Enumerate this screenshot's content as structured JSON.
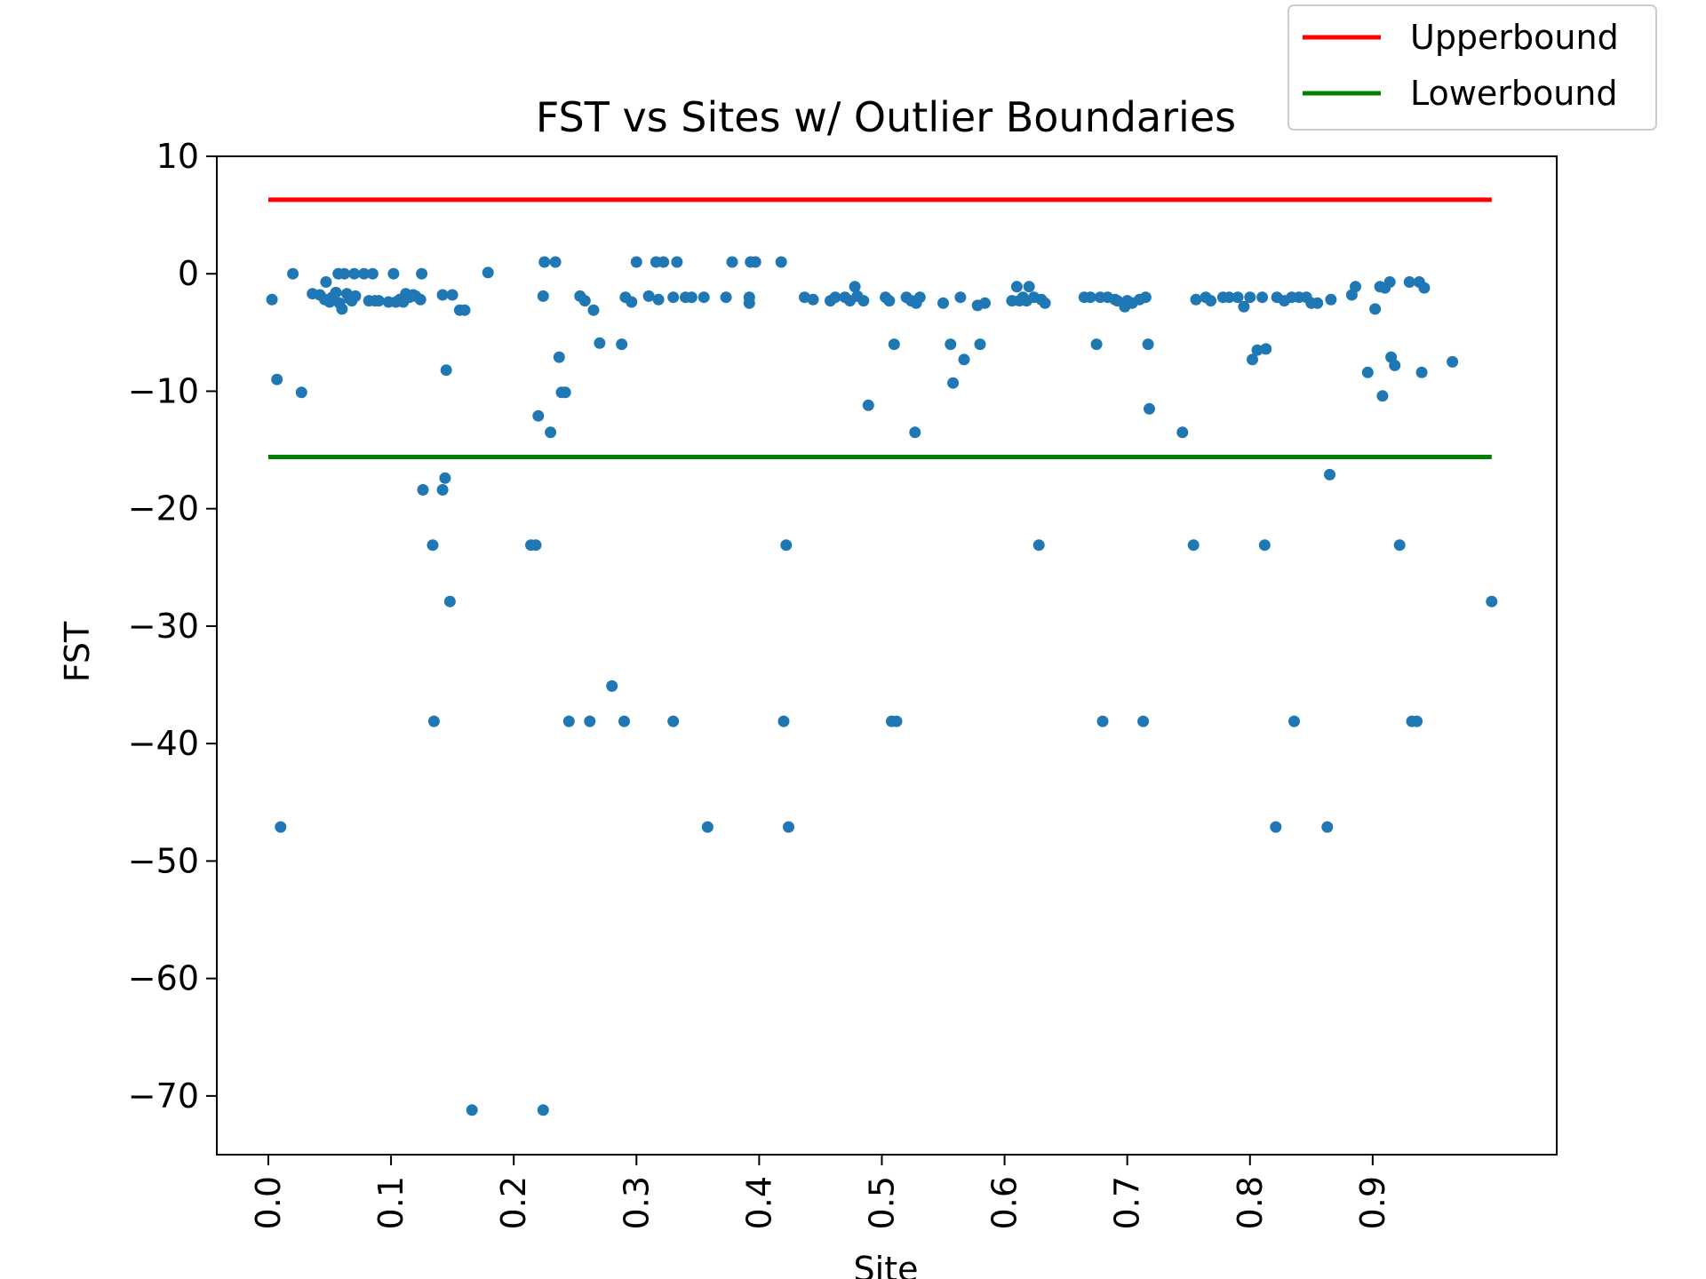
{
  "chart_data": {
    "type": "scatter",
    "title": "FST vs Sites w/ Outlier Boundaries",
    "xlabel": "Site",
    "ylabel": "FST",
    "xlim": [
      -0.042,
      1.05
    ],
    "ylim": [
      -75,
      10
    ],
    "xticks": [
      0.0,
      0.1,
      0.2,
      0.3,
      0.4,
      0.5,
      0.6,
      0.7,
      0.8,
      0.9
    ],
    "xtick_labels": [
      "0.0",
      "0.1",
      "0.2",
      "0.3",
      "0.4",
      "0.5",
      "0.6",
      "0.7",
      "0.8",
      "0.9"
    ],
    "yticks": [
      10,
      0,
      -10,
      -20,
      -30,
      -40,
      -50,
      -60,
      -70
    ],
    "ytick_labels": [
      "10",
      "0",
      "−10",
      "−20",
      "−30",
      "−40",
      "−50",
      "−60",
      "−70"
    ],
    "grid": false,
    "legend_position": "top-right, above plot",
    "series": [
      {
        "kind": "points",
        "color": "#1f77b4",
        "points": [
          [
            0.003,
            -2.2
          ],
          [
            0.007,
            -9.0
          ],
          [
            0.01,
            -47.1
          ],
          [
            0.02,
            0.0
          ],
          [
            0.027,
            -10.1
          ],
          [
            0.036,
            -1.7
          ],
          [
            0.042,
            -1.8
          ],
          [
            0.046,
            -2.2
          ],
          [
            0.047,
            -0.7
          ],
          [
            0.05,
            -2.4
          ],
          [
            0.052,
            -2.0
          ],
          [
            0.055,
            -1.6
          ],
          [
            0.057,
            0.0
          ],
          [
            0.058,
            -2.5
          ],
          [
            0.06,
            -3.0
          ],
          [
            0.062,
            0.0
          ],
          [
            0.064,
            -1.7
          ],
          [
            0.066,
            -2.1
          ],
          [
            0.068,
            -2.3
          ],
          [
            0.07,
            0.0
          ],
          [
            0.071,
            -1.9
          ],
          [
            0.078,
            0.0
          ],
          [
            0.082,
            -2.3
          ],
          [
            0.085,
            0.0
          ],
          [
            0.087,
            -2.3
          ],
          [
            0.09,
            -2.3
          ],
          [
            0.098,
            -2.4
          ],
          [
            0.102,
            0.0
          ],
          [
            0.104,
            -2.4
          ],
          [
            0.107,
            -2.2
          ],
          [
            0.11,
            -2.4
          ],
          [
            0.112,
            -1.7
          ],
          [
            0.115,
            -2.0
          ],
          [
            0.118,
            -1.8
          ],
          [
            0.12,
            -1.9
          ],
          [
            0.124,
            -2.2
          ],
          [
            0.125,
            0.0
          ],
          [
            0.126,
            -18.4
          ],
          [
            0.134,
            -23.1
          ],
          [
            0.135,
            -38.1
          ],
          [
            0.142,
            -1.8
          ],
          [
            0.142,
            -18.4
          ],
          [
            0.144,
            -17.4
          ],
          [
            0.145,
            -8.2
          ],
          [
            0.148,
            -27.9
          ],
          [
            0.15,
            -1.8
          ],
          [
            0.156,
            -3.1
          ],
          [
            0.16,
            -3.1
          ],
          [
            0.166,
            -71.2
          ],
          [
            0.179,
            0.1
          ],
          [
            0.214,
            -23.1
          ],
          [
            0.218,
            -23.1
          ],
          [
            0.22,
            -12.1
          ],
          [
            0.224,
            -1.9
          ],
          [
            0.224,
            -71.2
          ],
          [
            0.225,
            1.0
          ],
          [
            0.23,
            -13.5
          ],
          [
            0.234,
            1.0
          ],
          [
            0.237,
            -7.1
          ],
          [
            0.239,
            -10.1
          ],
          [
            0.242,
            -10.1
          ],
          [
            0.245,
            -38.1
          ],
          [
            0.254,
            -1.9
          ],
          [
            0.258,
            -2.3
          ],
          [
            0.262,
            -38.1
          ],
          [
            0.265,
            -3.1
          ],
          [
            0.27,
            -5.9
          ],
          [
            0.28,
            -35.1
          ],
          [
            0.288,
            -6.0
          ],
          [
            0.29,
            -38.1
          ],
          [
            0.291,
            -2.0
          ],
          [
            0.296,
            -2.4
          ],
          [
            0.3,
            1.0
          ],
          [
            0.31,
            -1.9
          ],
          [
            0.316,
            1.0
          ],
          [
            0.318,
            -2.2
          ],
          [
            0.322,
            1.0
          ],
          [
            0.33,
            -38.1
          ],
          [
            0.33,
            -2.0
          ],
          [
            0.333,
            1.0
          ],
          [
            0.34,
            -2.0
          ],
          [
            0.345,
            -2.0
          ],
          [
            0.355,
            -2.0
          ],
          [
            0.358,
            -47.1
          ],
          [
            0.373,
            -2.0
          ],
          [
            0.378,
            1.0
          ],
          [
            0.392,
            -2.0
          ],
          [
            0.392,
            -2.5
          ],
          [
            0.393,
            1.0
          ],
          [
            0.397,
            1.0
          ],
          [
            0.418,
            1.0
          ],
          [
            0.42,
            -38.1
          ],
          [
            0.422,
            -23.1
          ],
          [
            0.424,
            -47.1
          ],
          [
            0.437,
            -2.0
          ],
          [
            0.444,
            -2.2
          ],
          [
            0.458,
            -2.3
          ],
          [
            0.462,
            -2.0
          ],
          [
            0.47,
            -2.0
          ],
          [
            0.474,
            -2.3
          ],
          [
            0.478,
            -1.1
          ],
          [
            0.48,
            -1.9
          ],
          [
            0.485,
            -2.3
          ],
          [
            0.489,
            -11.2
          ],
          [
            0.503,
            -2.0
          ],
          [
            0.506,
            -2.3
          ],
          [
            0.508,
            -38.1
          ],
          [
            0.51,
            -6.0
          ],
          [
            0.512,
            -38.1
          ],
          [
            0.52,
            -2.0
          ],
          [
            0.524,
            -2.3
          ],
          [
            0.527,
            -13.5
          ],
          [
            0.528,
            -2.5
          ],
          [
            0.531,
            -2.0
          ],
          [
            0.55,
            -2.5
          ],
          [
            0.556,
            -6.0
          ],
          [
            0.558,
            -9.3
          ],
          [
            0.564,
            -2.0
          ],
          [
            0.567,
            -7.3
          ],
          [
            0.578,
            -2.7
          ],
          [
            0.58,
            -6.0
          ],
          [
            0.584,
            -2.5
          ],
          [
            0.606,
            -2.3
          ],
          [
            0.61,
            -1.1
          ],
          [
            0.612,
            -2.3
          ],
          [
            0.615,
            -2.0
          ],
          [
            0.618,
            -2.3
          ],
          [
            0.62,
            -1.1
          ],
          [
            0.624,
            -2.0
          ],
          [
            0.628,
            -23.1
          ],
          [
            0.63,
            -2.2
          ],
          [
            0.633,
            -2.5
          ],
          [
            0.665,
            -2.0
          ],
          [
            0.67,
            -2.0
          ],
          [
            0.675,
            -6.0
          ],
          [
            0.678,
            -2.0
          ],
          [
            0.68,
            -38.1
          ],
          [
            0.684,
            -2.0
          ],
          [
            0.69,
            -2.2
          ],
          [
            0.692,
            -2.3
          ],
          [
            0.698,
            -2.8
          ],
          [
            0.7,
            -2.3
          ],
          [
            0.704,
            -2.5
          ],
          [
            0.71,
            -2.2
          ],
          [
            0.713,
            -38.1
          ],
          [
            0.715,
            -2.0
          ],
          [
            0.717,
            -6.0
          ],
          [
            0.718,
            -11.5
          ],
          [
            0.745,
            -13.5
          ],
          [
            0.754,
            -23.1
          ],
          [
            0.756,
            -2.2
          ],
          [
            0.764,
            -2.0
          ],
          [
            0.768,
            -2.3
          ],
          [
            0.778,
            -2.0
          ],
          [
            0.783,
            -2.0
          ],
          [
            0.79,
            -2.0
          ],
          [
            0.795,
            -2.8
          ],
          [
            0.8,
            -2.0
          ],
          [
            0.802,
            -7.3
          ],
          [
            0.806,
            -6.5
          ],
          [
            0.81,
            -2.0
          ],
          [
            0.812,
            -23.1
          ],
          [
            0.813,
            -6.4
          ],
          [
            0.821,
            -47.1
          ],
          [
            0.822,
            -2.0
          ],
          [
            0.828,
            -2.3
          ],
          [
            0.834,
            -2.0
          ],
          [
            0.836,
            -38.1
          ],
          [
            0.84,
            -2.0
          ],
          [
            0.846,
            -2.0
          ],
          [
            0.85,
            -2.5
          ],
          [
            0.855,
            -2.5
          ],
          [
            0.863,
            -47.1
          ],
          [
            0.865,
            -17.1
          ],
          [
            0.866,
            -2.2
          ],
          [
            0.883,
            -1.8
          ],
          [
            0.886,
            -1.1
          ],
          [
            0.896,
            -8.4
          ],
          [
            0.902,
            -3.0
          ],
          [
            0.906,
            -1.1
          ],
          [
            0.908,
            -10.4
          ],
          [
            0.91,
            -1.2
          ],
          [
            0.914,
            -0.7
          ],
          [
            0.915,
            -7.1
          ],
          [
            0.918,
            -7.8
          ],
          [
            0.922,
            -23.1
          ],
          [
            0.93,
            -0.7
          ],
          [
            0.932,
            -38.1
          ],
          [
            0.936,
            -38.1
          ],
          [
            0.938,
            -0.7
          ],
          [
            0.94,
            -8.4
          ],
          [
            0.942,
            -1.2
          ],
          [
            0.965,
            -7.5
          ],
          [
            0.997,
            -27.9
          ]
        ]
      },
      {
        "kind": "hline",
        "name": "Upperbound",
        "color": "#ff0000",
        "y": 6.3,
        "x": [
          0.0,
          0.997
        ]
      },
      {
        "kind": "hline",
        "name": "Lowerbound",
        "color": "#008000",
        "y": -15.6,
        "x": [
          0.0,
          0.997
        ]
      }
    ]
  }
}
